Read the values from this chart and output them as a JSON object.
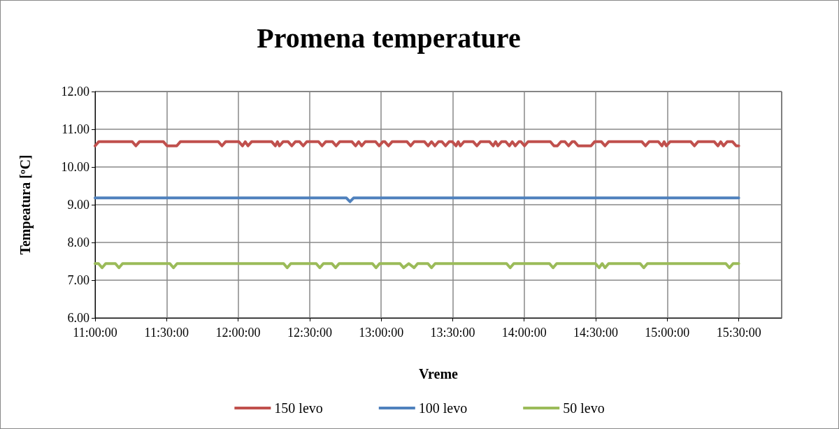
{
  "chart_data": {
    "type": "line",
    "title": "Promena temperature",
    "xlabel": "Vreme",
    "ylabel": "Tempeatura [ºC]",
    "xlim": [
      11,
      15.8
    ],
    "xticks": [
      {
        "value": 11,
        "label": "11:00:00"
      },
      {
        "value": 11.5,
        "label": "11:30:00"
      },
      {
        "value": 12,
        "label": "12:00:00"
      },
      {
        "value": 12.5,
        "label": "12:30:00"
      },
      {
        "value": 13,
        "label": "13:00:00"
      },
      {
        "value": 13.5,
        "label": "13:30:00"
      },
      {
        "value": 14,
        "label": "14:00:00"
      },
      {
        "value": 14.5,
        "label": "14:30:00"
      },
      {
        "value": 15,
        "label": "15:00:00"
      },
      {
        "value": 15.5,
        "label": "15:30:00"
      }
    ],
    "ylim": [
      6,
      12
    ],
    "yticks": [
      {
        "value": 6,
        "label": "6.00"
      },
      {
        "value": 7,
        "label": "7.00"
      },
      {
        "value": 8,
        "label": "8.00"
      },
      {
        "value": 9,
        "label": "9.00"
      },
      {
        "value": 10,
        "label": "10.00"
      },
      {
        "value": 11,
        "label": "11.00"
      },
      {
        "value": 12,
        "label": "12.00"
      }
    ],
    "grid": true,
    "legend": "bottom",
    "marker": "none",
    "line_style": "solid",
    "series": [
      {
        "name": "150 levo",
        "color": "#c0504d",
        "x": [
          11.0,
          11.025,
          11.26,
          11.285,
          11.31,
          11.478,
          11.503,
          11.571,
          11.596,
          11.862,
          11.887,
          11.912,
          12.005,
          12.03,
          12.05,
          12.069,
          12.094,
          12.235,
          12.26,
          12.275,
          12.289,
          12.314,
          12.35,
          12.375,
          12.4,
          12.43,
          12.455,
          12.48,
          12.562,
          12.587,
          12.612,
          12.66,
          12.685,
          12.71,
          12.796,
          12.821,
          12.843,
          12.864,
          12.889,
          12.961,
          12.986,
          13.011,
          13.026,
          13.051,
          13.076,
          13.181,
          13.206,
          13.231,
          13.303,
          13.328,
          13.352,
          13.376,
          13.401,
          13.425,
          13.45,
          13.475,
          13.498,
          13.523,
          13.539,
          13.554,
          13.579,
          13.644,
          13.669,
          13.694,
          13.758,
          13.783,
          13.8,
          13.816,
          13.841,
          13.871,
          13.896,
          13.917,
          13.938,
          13.963,
          13.977,
          14.002,
          14.027,
          14.183,
          14.208,
          14.232,
          14.257,
          14.285,
          14.31,
          14.335,
          14.352,
          14.377,
          14.467,
          14.492,
          14.54,
          14.565,
          14.59,
          14.823,
          14.848,
          14.873,
          14.938,
          14.963,
          14.978,
          14.994,
          15.019,
          15.165,
          15.19,
          15.215,
          15.329,
          15.354,
          15.374,
          15.394,
          15.419,
          15.457,
          15.482,
          15.5
        ],
        "values": [
          10.56,
          10.67,
          10.67,
          10.56,
          10.67,
          10.67,
          10.56,
          10.56,
          10.67,
          10.67,
          10.56,
          10.67,
          10.67,
          10.56,
          10.67,
          10.56,
          10.67,
          10.67,
          10.56,
          10.67,
          10.56,
          10.67,
          10.67,
          10.56,
          10.67,
          10.67,
          10.56,
          10.67,
          10.67,
          10.56,
          10.67,
          10.67,
          10.56,
          10.67,
          10.67,
          10.56,
          10.67,
          10.56,
          10.67,
          10.67,
          10.56,
          10.67,
          10.67,
          10.56,
          10.67,
          10.67,
          10.56,
          10.67,
          10.67,
          10.56,
          10.67,
          10.56,
          10.67,
          10.67,
          10.56,
          10.67,
          10.67,
          10.56,
          10.67,
          10.56,
          10.67,
          10.67,
          10.56,
          10.67,
          10.67,
          10.56,
          10.67,
          10.56,
          10.67,
          10.67,
          10.56,
          10.67,
          10.56,
          10.67,
          10.67,
          10.56,
          10.67,
          10.67,
          10.56,
          10.56,
          10.67,
          10.67,
          10.56,
          10.67,
          10.67,
          10.56,
          10.56,
          10.67,
          10.67,
          10.56,
          10.67,
          10.67,
          10.56,
          10.67,
          10.67,
          10.56,
          10.67,
          10.56,
          10.67,
          10.67,
          10.56,
          10.67,
          10.67,
          10.56,
          10.67,
          10.56,
          10.67,
          10.67,
          10.56,
          10.56
        ]
      },
      {
        "name": "100 levo",
        "color": "#4f81bd",
        "x": [
          11.0,
          12.757,
          12.782,
          12.807,
          15.5
        ],
        "values": [
          9.18,
          9.18,
          9.08,
          9.18,
          9.18
        ]
      },
      {
        "name": "50 levo",
        "color": "#9bbb59",
        "x": [
          11.0,
          11.024,
          11.049,
          11.074,
          11.142,
          11.167,
          11.192,
          11.523,
          11.548,
          11.573,
          12.318,
          12.343,
          12.368,
          12.546,
          12.571,
          12.596,
          12.656,
          12.681,
          12.706,
          12.939,
          12.964,
          12.989,
          13.132,
          13.157,
          13.193,
          13.23,
          13.255,
          13.327,
          13.352,
          13.377,
          13.877,
          13.902,
          13.927,
          14.177,
          14.202,
          14.227,
          14.499,
          14.524,
          14.545,
          14.565,
          14.59,
          14.811,
          14.836,
          14.861,
          15.41,
          15.435,
          15.46,
          15.5
        ],
        "values": [
          7.44,
          7.44,
          7.33,
          7.44,
          7.44,
          7.33,
          7.44,
          7.44,
          7.33,
          7.44,
          7.44,
          7.33,
          7.44,
          7.44,
          7.33,
          7.44,
          7.44,
          7.33,
          7.44,
          7.44,
          7.33,
          7.44,
          7.44,
          7.33,
          7.44,
          7.33,
          7.44,
          7.44,
          7.33,
          7.44,
          7.44,
          7.33,
          7.44,
          7.44,
          7.33,
          7.44,
          7.44,
          7.33,
          7.44,
          7.33,
          7.44,
          7.44,
          7.33,
          7.44,
          7.44,
          7.33,
          7.44,
          7.44
        ]
      }
    ]
  }
}
